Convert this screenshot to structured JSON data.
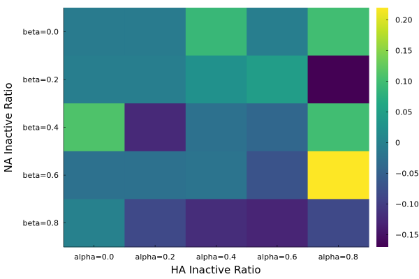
{
  "chart_data": {
    "type": "heatmap",
    "xlabel": "HA Inactive Ratio",
    "ylabel": "NA Inactive Ratio",
    "x_categories": [
      "alpha=0.0",
      "alpha=0.2",
      "alpha=0.4",
      "alpha=0.6",
      "alpha=0.8"
    ],
    "y_categories": [
      "beta=0.0",
      "beta=0.2",
      "beta=0.4",
      "beta=0.6",
      "beta=0.8"
    ],
    "values": [
      [
        -0.01,
        -0.01,
        0.09,
        -0.005,
        0.1
      ],
      [
        -0.005,
        -0.005,
        0.025,
        0.045,
        -0.17
      ],
      [
        0.11,
        -0.125,
        -0.025,
        -0.04,
        0.1
      ],
      [
        -0.025,
        -0.025,
        -0.02,
        -0.07,
        0.22
      ],
      [
        0.0,
        -0.085,
        -0.12,
        -0.13,
        -0.085
      ]
    ],
    "colorbar": {
      "range": [
        -0.17,
        0.22
      ],
      "ticks": [
        -0.15,
        -0.1,
        -0.05,
        0,
        0.05,
        0.1,
        0.15,
        0.2
      ],
      "tick_labels": [
        "−0.15",
        "−0.10",
        "−0.05",
        "0",
        "0.05",
        "0.10",
        "0.15",
        "0.20"
      ],
      "colormap": "viridis"
    }
  }
}
